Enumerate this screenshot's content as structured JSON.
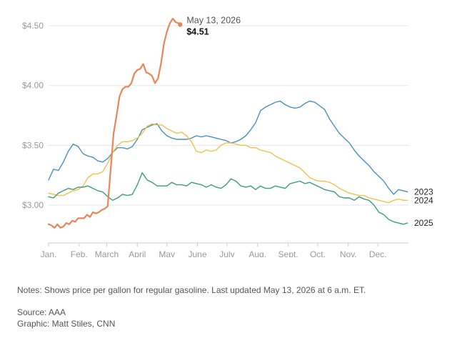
{
  "chart_data": {
    "type": "line",
    "title": "",
    "xlabel": "",
    "ylabel": "",
    "x_ticks": [
      "Jan.",
      "Feb.",
      "March",
      "April",
      "May",
      "June",
      "July",
      "Aug.",
      "Sept.",
      "Oct.",
      "Nov.",
      "Dec."
    ],
    "y_ticks": [
      "$4.50",
      "$4.00",
      "$3.50",
      "$3.00"
    ],
    "y_tick_values": [
      4.5,
      4.0,
      3.5,
      3.0
    ],
    "ylim": [
      2.83,
      4.58
    ],
    "x_unit": "day of year",
    "xlim": [
      0,
      365
    ],
    "grid": "horizontal",
    "legend": "direct labels at line ends",
    "series": [
      {
        "name": "2023",
        "color": "#4a8fc0",
        "x": [
          0,
          5,
          10,
          15,
          20,
          25,
          30,
          35,
          40,
          45,
          50,
          55,
          60,
          65,
          70,
          75,
          80,
          85,
          90,
          95,
          100,
          105,
          110,
          115,
          120,
          125,
          130,
          135,
          140,
          145,
          150,
          155,
          160,
          165,
          170,
          175,
          180,
          185,
          190,
          195,
          200,
          205,
          210,
          215,
          220,
          225,
          230,
          235,
          240,
          245,
          250,
          255,
          260,
          265,
          270,
          275,
          280,
          285,
          290,
          295,
          300,
          305,
          310,
          315,
          320,
          325,
          330,
          335,
          340,
          345,
          350,
          355,
          360,
          364
        ],
        "y": [
          3.21,
          3.3,
          3.29,
          3.36,
          3.45,
          3.51,
          3.49,
          3.43,
          3.41,
          3.4,
          3.37,
          3.36,
          3.39,
          3.44,
          3.48,
          3.48,
          3.47,
          3.49,
          3.55,
          3.63,
          3.65,
          3.67,
          3.68,
          3.62,
          3.58,
          3.56,
          3.55,
          3.55,
          3.55,
          3.56,
          3.58,
          3.57,
          3.58,
          3.57,
          3.56,
          3.55,
          3.54,
          3.52,
          3.53,
          3.55,
          3.58,
          3.63,
          3.69,
          3.79,
          3.82,
          3.84,
          3.86,
          3.87,
          3.84,
          3.82,
          3.81,
          3.82,
          3.85,
          3.87,
          3.86,
          3.83,
          3.8,
          3.72,
          3.66,
          3.6,
          3.56,
          3.52,
          3.46,
          3.41,
          3.37,
          3.33,
          3.28,
          3.24,
          3.2,
          3.14,
          3.09,
          3.13,
          3.12,
          3.11
        ]
      },
      {
        "name": "2024",
        "color": "#f0c24a",
        "x": [
          0,
          5,
          10,
          15,
          20,
          25,
          30,
          35,
          40,
          45,
          50,
          55,
          60,
          65,
          70,
          75,
          80,
          85,
          90,
          95,
          100,
          105,
          110,
          115,
          120,
          125,
          130,
          135,
          140,
          145,
          150,
          155,
          160,
          165,
          170,
          175,
          180,
          185,
          190,
          195,
          200,
          205,
          210,
          215,
          220,
          225,
          230,
          235,
          240,
          245,
          250,
          255,
          260,
          265,
          270,
          275,
          280,
          285,
          290,
          295,
          300,
          305,
          310,
          315,
          320,
          325,
          330,
          335,
          340,
          345,
          350,
          355,
          360,
          364
        ],
        "y": [
          3.1,
          3.09,
          3.08,
          3.08,
          3.1,
          3.12,
          3.13,
          3.16,
          3.23,
          3.26,
          3.26,
          3.28,
          3.35,
          3.44,
          3.5,
          3.53,
          3.53,
          3.54,
          3.56,
          3.6,
          3.66,
          3.68,
          3.67,
          3.67,
          3.64,
          3.62,
          3.6,
          3.61,
          3.58,
          3.53,
          3.45,
          3.44,
          3.46,
          3.45,
          3.46,
          3.5,
          3.52,
          3.52,
          3.51,
          3.5,
          3.5,
          3.48,
          3.48,
          3.46,
          3.45,
          3.44,
          3.41,
          3.39,
          3.37,
          3.35,
          3.33,
          3.31,
          3.27,
          3.23,
          3.21,
          3.2,
          3.2,
          3.19,
          3.17,
          3.14,
          3.12,
          3.1,
          3.09,
          3.08,
          3.08,
          3.06,
          3.05,
          3.04,
          3.03,
          3.02,
          3.04,
          3.05,
          3.04,
          3.04
        ]
      },
      {
        "name": "2025",
        "color": "#3e9e7a",
        "x": [
          0,
          5,
          10,
          15,
          20,
          25,
          30,
          35,
          40,
          45,
          50,
          55,
          60,
          65,
          70,
          75,
          80,
          85,
          90,
          95,
          100,
          105,
          110,
          115,
          120,
          125,
          130,
          135,
          140,
          145,
          150,
          155,
          160,
          165,
          170,
          175,
          180,
          185,
          190,
          195,
          200,
          205,
          210,
          215,
          220,
          225,
          230,
          235,
          240,
          245,
          250,
          255,
          260,
          265,
          270,
          275,
          280,
          285,
          290,
          295,
          300,
          305,
          310,
          315,
          320,
          325,
          330,
          335,
          340,
          345,
          350,
          355,
          360,
          364
        ],
        "y": [
          3.07,
          3.06,
          3.1,
          3.12,
          3.14,
          3.13,
          3.15,
          3.15,
          3.16,
          3.14,
          3.12,
          3.11,
          3.07,
          3.04,
          3.06,
          3.09,
          3.08,
          3.09,
          3.17,
          3.27,
          3.21,
          3.19,
          3.16,
          3.16,
          3.16,
          3.19,
          3.17,
          3.17,
          3.16,
          3.19,
          3.18,
          3.17,
          3.15,
          3.17,
          3.15,
          3.14,
          3.17,
          3.22,
          3.2,
          3.16,
          3.15,
          3.16,
          3.13,
          3.16,
          3.14,
          3.14,
          3.16,
          3.15,
          3.14,
          3.18,
          3.19,
          3.2,
          3.18,
          3.19,
          3.17,
          3.15,
          3.13,
          3.12,
          3.11,
          3.07,
          3.06,
          3.06,
          3.04,
          3.07,
          3.05,
          3.04,
          3.0,
          2.94,
          2.92,
          2.88,
          2.86,
          2.85,
          2.84,
          2.85
        ]
      },
      {
        "name": "",
        "color": "#e8865a",
        "x": [
          0,
          3,
          6,
          9,
          12,
          15,
          18,
          21,
          24,
          27,
          30,
          33,
          36,
          39,
          42,
          45,
          48,
          51,
          54,
          57,
          60,
          63,
          66,
          69,
          72,
          75,
          78,
          81,
          84,
          87,
          90,
          93,
          96,
          99,
          102,
          105,
          108,
          111,
          114,
          117,
          120,
          123,
          126,
          129,
          132,
          133
        ],
        "y": [
          2.84,
          2.83,
          2.81,
          2.84,
          2.81,
          2.82,
          2.85,
          2.84,
          2.87,
          2.86,
          2.89,
          2.89,
          2.89,
          2.92,
          2.9,
          2.94,
          2.93,
          2.94,
          2.96,
          2.97,
          2.99,
          3.3,
          3.6,
          3.75,
          3.91,
          3.97,
          3.99,
          3.99,
          4.02,
          4.1,
          4.13,
          4.14,
          4.18,
          4.11,
          4.1,
          4.08,
          4.02,
          4.06,
          4.18,
          4.35,
          4.45,
          4.52,
          4.56,
          4.53,
          4.52,
          4.51
        ]
      }
    ],
    "annotation": {
      "date": "May 13, 2026",
      "value": "$4.51",
      "value_number": 4.51,
      "day": 132
    }
  },
  "notes": "Notes: Shows price per gallon for regular gasoline. Last updated May 13, 2026 at 6 a.m. ET.",
  "source": "Source: AAA",
  "graphic": "Graphic: Matt Stiles, CNN"
}
